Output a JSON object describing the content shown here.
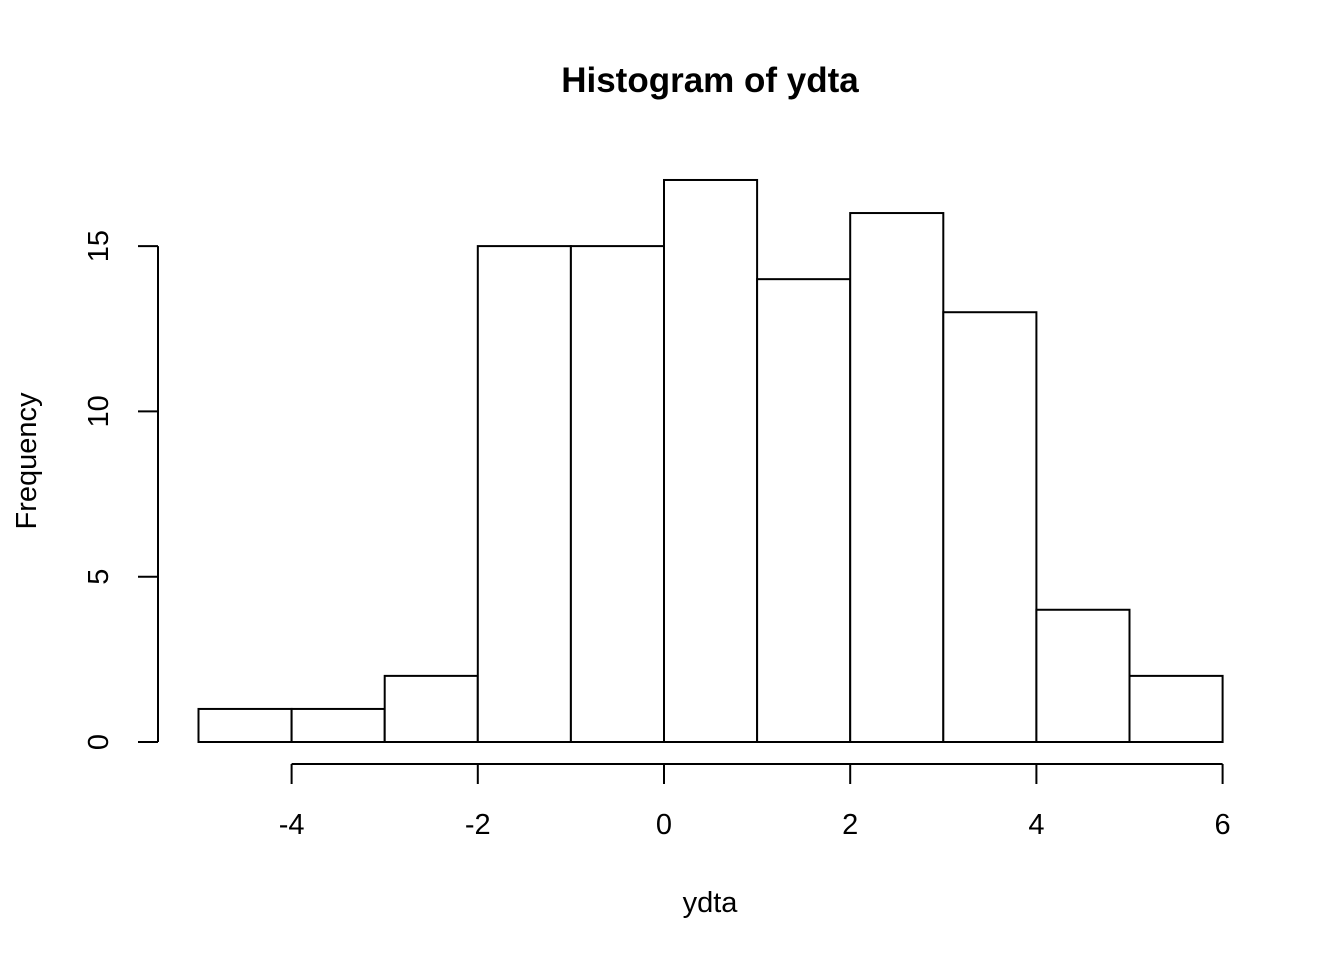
{
  "chart_data": {
    "type": "bar",
    "title": "Histogram of ydta",
    "xlabel": "ydta",
    "ylabel": "Frequency",
    "bins": [
      {
        "x0": -5,
        "x1": -4,
        "count": 1
      },
      {
        "x0": -4,
        "x1": -3,
        "count": 1
      },
      {
        "x0": -3,
        "x1": -2,
        "count": 2
      },
      {
        "x0": -2,
        "x1": -1,
        "count": 15
      },
      {
        "x0": -1,
        "x1": 0,
        "count": 15
      },
      {
        "x0": 0,
        "x1": 1,
        "count": 17
      },
      {
        "x0": 1,
        "x1": 2,
        "count": 14
      },
      {
        "x0": 2,
        "x1": 3,
        "count": 16
      },
      {
        "x0": 3,
        "x1": 4,
        "count": 13
      },
      {
        "x0": 4,
        "x1": 5,
        "count": 4
      },
      {
        "x0": 5,
        "x1": 6,
        "count": 2
      }
    ],
    "xticks": [
      -4,
      -2,
      0,
      2,
      4,
      6
    ],
    "yticks": [
      0,
      5,
      10,
      15
    ],
    "xlim": [
      -5,
      6
    ],
    "ylim": [
      0,
      17
    ],
    "grid": false,
    "colors": {
      "bar_fill": "#ffffff",
      "bar_stroke": "#000000"
    }
  }
}
